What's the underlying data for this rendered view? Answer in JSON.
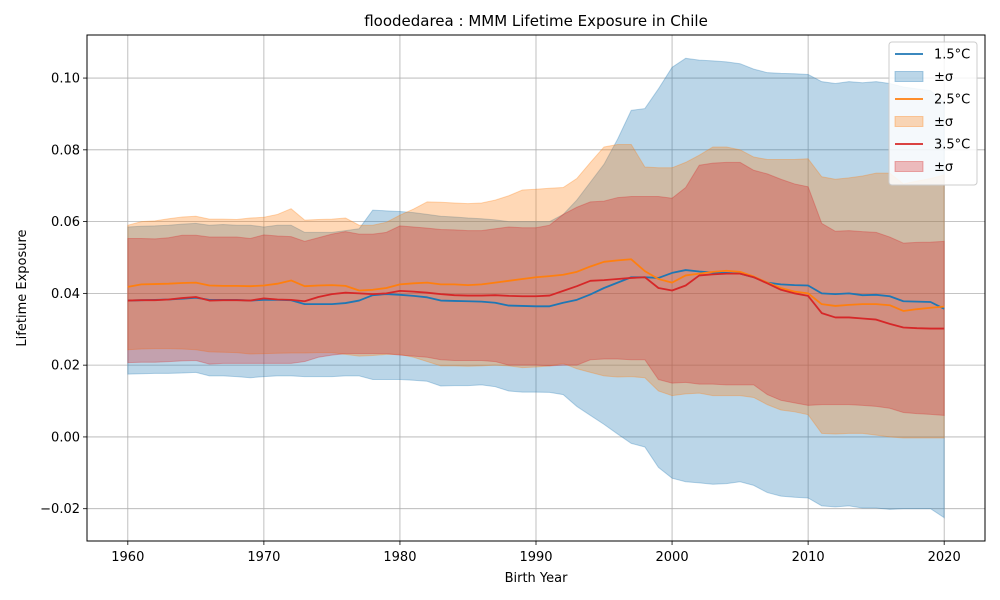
{
  "chart_data": {
    "type": "line",
    "title": "floodedarea : MMM Lifetime Exposure in Chile",
    "xlabel": "Birth Year",
    "ylabel": "Lifetime Exposure",
    "xlim": [
      1957,
      2023
    ],
    "ylim": [
      -0.029,
      0.112
    ],
    "xticks": [
      1960,
      1970,
      1980,
      1990,
      2000,
      2010,
      2020
    ],
    "yticks": [
      -0.02,
      0.0,
      0.02,
      0.04,
      0.06,
      0.08,
      0.1
    ],
    "ytick_labels": [
      "−0.02",
      "0.00",
      "0.02",
      "0.04",
      "0.06",
      "0.08",
      "0.10"
    ],
    "grid": true,
    "legend_position": "top-right",
    "x": [
      1960,
      1961,
      1962,
      1963,
      1964,
      1965,
      1966,
      1967,
      1968,
      1969,
      1970,
      1971,
      1972,
      1973,
      1974,
      1975,
      1976,
      1977,
      1978,
      1979,
      1980,
      1981,
      1982,
      1983,
      1984,
      1985,
      1986,
      1987,
      1988,
      1989,
      1990,
      1991,
      1992,
      1993,
      1994,
      1995,
      1996,
      1997,
      1998,
      1999,
      2000,
      2001,
      2002,
      2003,
      2004,
      2005,
      2006,
      2007,
      2008,
      2009,
      2010,
      2011,
      2012,
      2013,
      2014,
      2015,
      2016,
      2017,
      2018,
      2019,
      2020
    ],
    "series": [
      {
        "name": "1.5°C",
        "band_label": "±σ",
        "color": "#1f77b4",
        "band_color": "#1f77b4",
        "mean": [
          0.038,
          0.0381,
          0.0382,
          0.0383,
          0.0385,
          0.0388,
          0.0382,
          0.0382,
          0.0382,
          0.038,
          0.0382,
          0.0382,
          0.0381,
          0.037,
          0.037,
          0.037,
          0.0373,
          0.038,
          0.0395,
          0.0398,
          0.0396,
          0.0393,
          0.0389,
          0.038,
          0.0379,
          0.0378,
          0.0377,
          0.0374,
          0.0366,
          0.0365,
          0.0364,
          0.0364,
          0.0374,
          0.0382,
          0.0397,
          0.0415,
          0.043,
          0.0445,
          0.0445,
          0.0443,
          0.0457,
          0.0465,
          0.0461,
          0.0458,
          0.0457,
          0.0455,
          0.0445,
          0.043,
          0.0425,
          0.0423,
          0.0422,
          0.04,
          0.0398,
          0.04,
          0.0395,
          0.0396,
          0.0392,
          0.0378,
          0.0377,
          0.0376,
          0.0357
        ],
        "upper": [
          0.0585,
          0.0587,
          0.0588,
          0.059,
          0.0593,
          0.0595,
          0.059,
          0.0592,
          0.059,
          0.059,
          0.0585,
          0.059,
          0.059,
          0.057,
          0.057,
          0.057,
          0.0575,
          0.058,
          0.0632,
          0.063,
          0.0628,
          0.0625,
          0.062,
          0.0615,
          0.0613,
          0.061,
          0.0608,
          0.0605,
          0.06,
          0.06,
          0.06,
          0.06,
          0.062,
          0.066,
          0.071,
          0.076,
          0.083,
          0.091,
          0.0915,
          0.097,
          0.103,
          0.1055,
          0.105,
          0.1048,
          0.1045,
          0.104,
          0.1025,
          0.1015,
          0.1013,
          0.1012,
          0.101,
          0.099,
          0.0985,
          0.099,
          0.0987,
          0.099,
          0.0985,
          0.0975,
          0.097,
          0.0965,
          0.0932
        ],
        "lower": [
          0.0175,
          0.0176,
          0.0177,
          0.0177,
          0.0178,
          0.018,
          0.017,
          0.017,
          0.0168,
          0.0165,
          0.0168,
          0.017,
          0.017,
          0.0168,
          0.0168,
          0.0168,
          0.017,
          0.017,
          0.016,
          0.016,
          0.016,
          0.0158,
          0.0155,
          0.0142,
          0.0143,
          0.0143,
          0.0145,
          0.014,
          0.0128,
          0.0125,
          0.0125,
          0.0124,
          0.0118,
          0.0085,
          0.006,
          0.0035,
          0.0008,
          -0.0018,
          -0.0028,
          -0.0085,
          -0.0115,
          -0.0125,
          -0.0128,
          -0.0132,
          -0.013,
          -0.0125,
          -0.0135,
          -0.0155,
          -0.0165,
          -0.0168,
          -0.017,
          -0.0192,
          -0.0195,
          -0.0192,
          -0.0198,
          -0.0198,
          -0.0202,
          -0.02,
          -0.02,
          -0.02,
          -0.0225
        ]
      },
      {
        "name": "2.5°C",
        "band_label": "±σ",
        "color": "#ff7f0e",
        "band_color": "#ff7f0e",
        "mean": [
          0.0418,
          0.0425,
          0.0426,
          0.0427,
          0.0429,
          0.043,
          0.0422,
          0.0421,
          0.0421,
          0.042,
          0.0422,
          0.0427,
          0.0436,
          0.042,
          0.0422,
          0.0423,
          0.0421,
          0.0408,
          0.041,
          0.0415,
          0.0425,
          0.0428,
          0.043,
          0.0425,
          0.0425,
          0.0423,
          0.0425,
          0.043,
          0.0435,
          0.044,
          0.0445,
          0.0448,
          0.0452,
          0.046,
          0.0475,
          0.0488,
          0.0492,
          0.0495,
          0.0462,
          0.044,
          0.043,
          0.045,
          0.0455,
          0.046,
          0.0463,
          0.046,
          0.0447,
          0.043,
          0.0415,
          0.0405,
          0.04,
          0.037,
          0.0365,
          0.0368,
          0.037,
          0.037,
          0.0367,
          0.0351,
          0.0356,
          0.036,
          0.0363
        ],
        "upper": [
          0.059,
          0.06,
          0.0602,
          0.0608,
          0.0613,
          0.0615,
          0.0607,
          0.0607,
          0.0606,
          0.061,
          0.0612,
          0.062,
          0.0636,
          0.0604,
          0.0606,
          0.0607,
          0.061,
          0.059,
          0.059,
          0.0598,
          0.0618,
          0.0635,
          0.0655,
          0.0654,
          0.0652,
          0.065,
          0.0652,
          0.066,
          0.0672,
          0.0688,
          0.069,
          0.0693,
          0.0695,
          0.072,
          0.0765,
          0.0808,
          0.0815,
          0.0815,
          0.0752,
          0.075,
          0.075,
          0.0765,
          0.0785,
          0.0808,
          0.0808,
          0.08,
          0.078,
          0.0773,
          0.0773,
          0.0773,
          0.0775,
          0.0725,
          0.0718,
          0.0722,
          0.0727,
          0.0735,
          0.0735,
          0.0705,
          0.0713,
          0.072,
          0.073
        ],
        "lower": [
          0.0243,
          0.0245,
          0.0246,
          0.0246,
          0.0245,
          0.0243,
          0.0237,
          0.0236,
          0.0235,
          0.0231,
          0.0232,
          0.0233,
          0.0234,
          0.0234,
          0.0235,
          0.0235,
          0.023,
          0.0225,
          0.0227,
          0.023,
          0.023,
          0.0222,
          0.021,
          0.0198,
          0.0198,
          0.0197,
          0.0198,
          0.02,
          0.0198,
          0.0193,
          0.0195,
          0.0198,
          0.0205,
          0.019,
          0.018,
          0.017,
          0.0167,
          0.0168,
          0.0165,
          0.0128,
          0.0115,
          0.012,
          0.0122,
          0.0115,
          0.0115,
          0.0115,
          0.011,
          0.009,
          0.0075,
          0.007,
          0.0062,
          0.001,
          0.0008,
          0.001,
          0.001,
          0.0005,
          0.0,
          -0.0003,
          -0.0003,
          -0.0003,
          -0.0003
        ]
      },
      {
        "name": "3.5°C",
        "band_label": "±σ",
        "color": "#d62728",
        "band_color": "#d62728",
        "mean": [
          0.038,
          0.0381,
          0.0381,
          0.0383,
          0.0387,
          0.039,
          0.038,
          0.0381,
          0.0381,
          0.038,
          0.0386,
          0.0383,
          0.0382,
          0.0378,
          0.039,
          0.0398,
          0.0402,
          0.04,
          0.0398,
          0.04,
          0.0407,
          0.0405,
          0.0402,
          0.0398,
          0.0395,
          0.0394,
          0.0394,
          0.0395,
          0.0393,
          0.0392,
          0.0392,
          0.0394,
          0.0407,
          0.042,
          0.0435,
          0.0437,
          0.044,
          0.0443,
          0.0445,
          0.0415,
          0.0408,
          0.0422,
          0.045,
          0.0453,
          0.0455,
          0.0455,
          0.0445,
          0.0428,
          0.041,
          0.04,
          0.0393,
          0.0345,
          0.0333,
          0.0333,
          0.033,
          0.0327,
          0.0315,
          0.0305,
          0.0303,
          0.0302,
          0.0302
        ],
        "upper": [
          0.0553,
          0.0553,
          0.0552,
          0.0555,
          0.0562,
          0.0562,
          0.0557,
          0.0557,
          0.0557,
          0.0553,
          0.0563,
          0.056,
          0.0558,
          0.0545,
          0.0555,
          0.0565,
          0.0572,
          0.0565,
          0.0565,
          0.057,
          0.0588,
          0.0585,
          0.0582,
          0.0578,
          0.0577,
          0.0575,
          0.0575,
          0.058,
          0.0585,
          0.0583,
          0.0583,
          0.059,
          0.062,
          0.064,
          0.0655,
          0.0657,
          0.0667,
          0.067,
          0.067,
          0.067,
          0.0665,
          0.0695,
          0.0757,
          0.0763,
          0.0765,
          0.0765,
          0.0743,
          0.0733,
          0.0718,
          0.0705,
          0.0697,
          0.0595,
          0.0573,
          0.0575,
          0.0572,
          0.057,
          0.0557,
          0.054,
          0.0542,
          0.0543,
          0.0545
        ],
        "lower": [
          0.0207,
          0.0208,
          0.0208,
          0.021,
          0.0212,
          0.0213,
          0.0203,
          0.0205,
          0.0205,
          0.0205,
          0.0205,
          0.0205,
          0.0205,
          0.021,
          0.0222,
          0.0228,
          0.0232,
          0.0232,
          0.0232,
          0.0232,
          0.0228,
          0.0225,
          0.0222,
          0.0215,
          0.0213,
          0.0213,
          0.0213,
          0.021,
          0.02,
          0.02,
          0.02,
          0.0198,
          0.02,
          0.02,
          0.0215,
          0.0217,
          0.0217,
          0.0215,
          0.0215,
          0.016,
          0.015,
          0.0152,
          0.0147,
          0.0147,
          0.0145,
          0.0145,
          0.0145,
          0.0118,
          0.0102,
          0.0095,
          0.0088,
          0.009,
          0.009,
          0.009,
          0.0088,
          0.0085,
          0.008,
          0.0068,
          0.0065,
          0.0063,
          0.006
        ]
      }
    ]
  }
}
